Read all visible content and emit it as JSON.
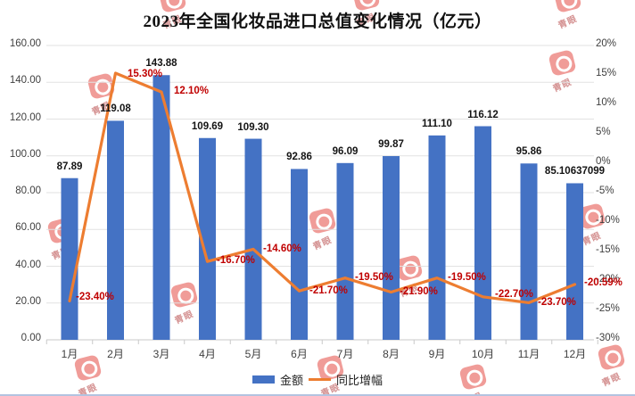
{
  "title": "2023年全国化妆品进口总值变化情况（亿元）",
  "legend": {
    "amount_label": "金额",
    "growth_label": "同比增幅"
  },
  "watermark": {
    "icon": "qingyan-logo",
    "text": "青眼"
  },
  "colors": {
    "bar": "#4472C4",
    "line": "#ED7D31",
    "value_label": "#141414",
    "growth_label": "#C00000",
    "axis_text": "#3f3f3f",
    "gridline": "#e2e2e2",
    "axis_line": "#c9c9c9"
  },
  "chart_data": {
    "type": "combo-bar-line",
    "title": "2023年全国化妆品进口总值变化情况（亿元）",
    "categories": [
      "1月",
      "2月",
      "3月",
      "4月",
      "5月",
      "6月",
      "7月",
      "8月",
      "9月",
      "10月",
      "11月",
      "12月"
    ],
    "series": [
      {
        "name": "金额",
        "type": "bar",
        "values": [
          87.89,
          119.08,
          143.88,
          109.69,
          109.3,
          92.86,
          96.09,
          99.87,
          111.1,
          116.12,
          95.86,
          85.10637099
        ],
        "labels": [
          "87.89",
          "119.08",
          "143.88",
          "109.69",
          "109.30",
          "92.86",
          "96.09",
          "99.87",
          "111.10",
          "116.12",
          "95.86",
          "85.10637099"
        ]
      },
      {
        "name": "同比增幅",
        "type": "line",
        "values": [
          -23.4,
          15.3,
          12.1,
          -16.7,
          -14.6,
          -21.7,
          -19.5,
          -21.9,
          -19.5,
          -22.7,
          -23.7,
          -20.59
        ],
        "labels": [
          "-23.40%",
          "15.30%",
          "12.10%",
          "-16.70%",
          "-14.60%",
          "-21.70%",
          "-19.50%",
          "-21.90%",
          "-19.50%",
          "-22.70%",
          "-23.70%",
          "-20.59%"
        ]
      }
    ],
    "left_axis": {
      "ticks": [
        "160.00",
        "140.00",
        "120.00",
        "100.00",
        "80.00",
        "60.00",
        "40.00",
        "20.00",
        "0.00"
      ],
      "min": 0,
      "max": 160
    },
    "right_axis": {
      "ticks": [
        "20%",
        "15%",
        "10%",
        "5%",
        "0%",
        "-5%",
        "-10%",
        "-15%",
        "-20%",
        "-25%",
        "-30%"
      ],
      "min": -30,
      "max": 20
    },
    "grid": true,
    "legend_position": "bottom"
  }
}
